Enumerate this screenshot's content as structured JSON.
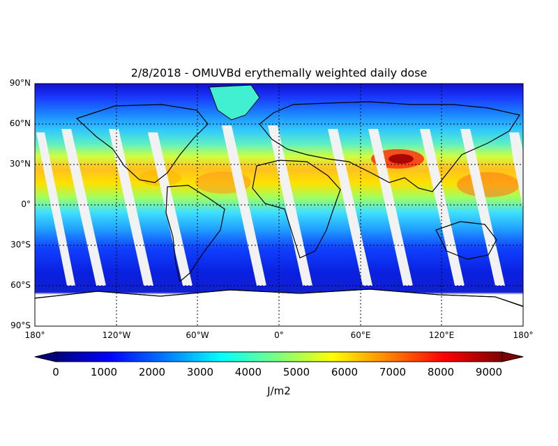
{
  "title": "2/8/2018 - OMUVBd erythemally weighted daily dose",
  "lat_labels": [
    "90°N",
    "60°N",
    "30°N",
    "0°",
    "30°S",
    "60°S",
    "90°S"
  ],
  "lon_labels": [
    "180°",
    "120°W",
    "60°W",
    "0°",
    "60°E",
    "120°E",
    "180°"
  ],
  "colorbar": {
    "ticks": [
      "0",
      "1000",
      "2000",
      "3000",
      "4000",
      "5000",
      "6000",
      "7000",
      "8000",
      "9000"
    ],
    "label": "J/m2",
    "colors": [
      "#00007f",
      "#0000ff",
      "#007fff",
      "#00ffff",
      "#7fff7f",
      "#ffff00",
      "#ff7f00",
      "#ff0000",
      "#7f0000"
    ]
  }
}
